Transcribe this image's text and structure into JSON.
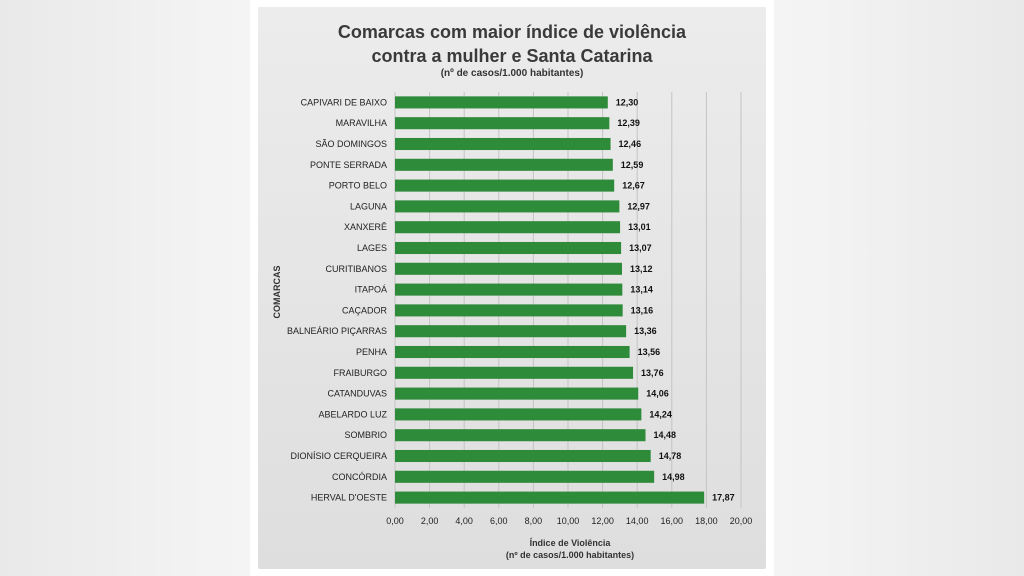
{
  "chart_data": {
    "type": "bar",
    "orientation": "horizontal",
    "title_line1": "Comarcas com maior índice de violência",
    "title_line2": "contra a mulher e Santa Catarina",
    "subtitle": "(nº de casos/1.000 habitantes)",
    "ylabel": "COMARCAS",
    "xlabel": "Índice de Violência",
    "xlabel_sub": "(nº de casos/1.000 habitantes)",
    "xlim": [
      0,
      20
    ],
    "x_ticks": [
      "0,00",
      "2,00",
      "4,00",
      "6,00",
      "8,00",
      "10,00",
      "12,00",
      "14,00",
      "16,00",
      "18,00",
      "20,00"
    ],
    "grid": "vertical",
    "bar_color": "#2e8b3a",
    "categories": [
      "CAPIVARI DE BAIXO",
      "MARAVILHA",
      "SÃO DOMINGOS",
      "PONTE SERRADA",
      "PORTO BELO",
      "LAGUNA",
      "XANXERÊ",
      "LAGES",
      "CURITIBANOS",
      "ITAPOÁ",
      "CAÇADOR",
      "BALNEÁRIO PIÇARRAS",
      "PENHA",
      "FRAIBURGO",
      "CATANDUVAS",
      "ABELARDO LUZ",
      "SOMBRIO",
      "DIONÍSIO CERQUEIRA",
      "CONCÓRDIA",
      "HERVAL D'OESTE"
    ],
    "values": [
      12.3,
      12.39,
      12.46,
      12.59,
      12.67,
      12.97,
      13.01,
      13.07,
      13.12,
      13.14,
      13.16,
      13.36,
      13.56,
      13.76,
      14.06,
      14.24,
      14.48,
      14.78,
      14.98,
      17.87
    ],
    "value_labels": [
      "12,30",
      "12,39",
      "12,46",
      "12,59",
      "12,67",
      "12,97",
      "13,01",
      "13,07",
      "13,12",
      "13,14",
      "13,16",
      "13,36",
      "13,56",
      "13,76",
      "14,06",
      "14,24",
      "14,48",
      "14,78",
      "14,98",
      "17,87"
    ]
  }
}
